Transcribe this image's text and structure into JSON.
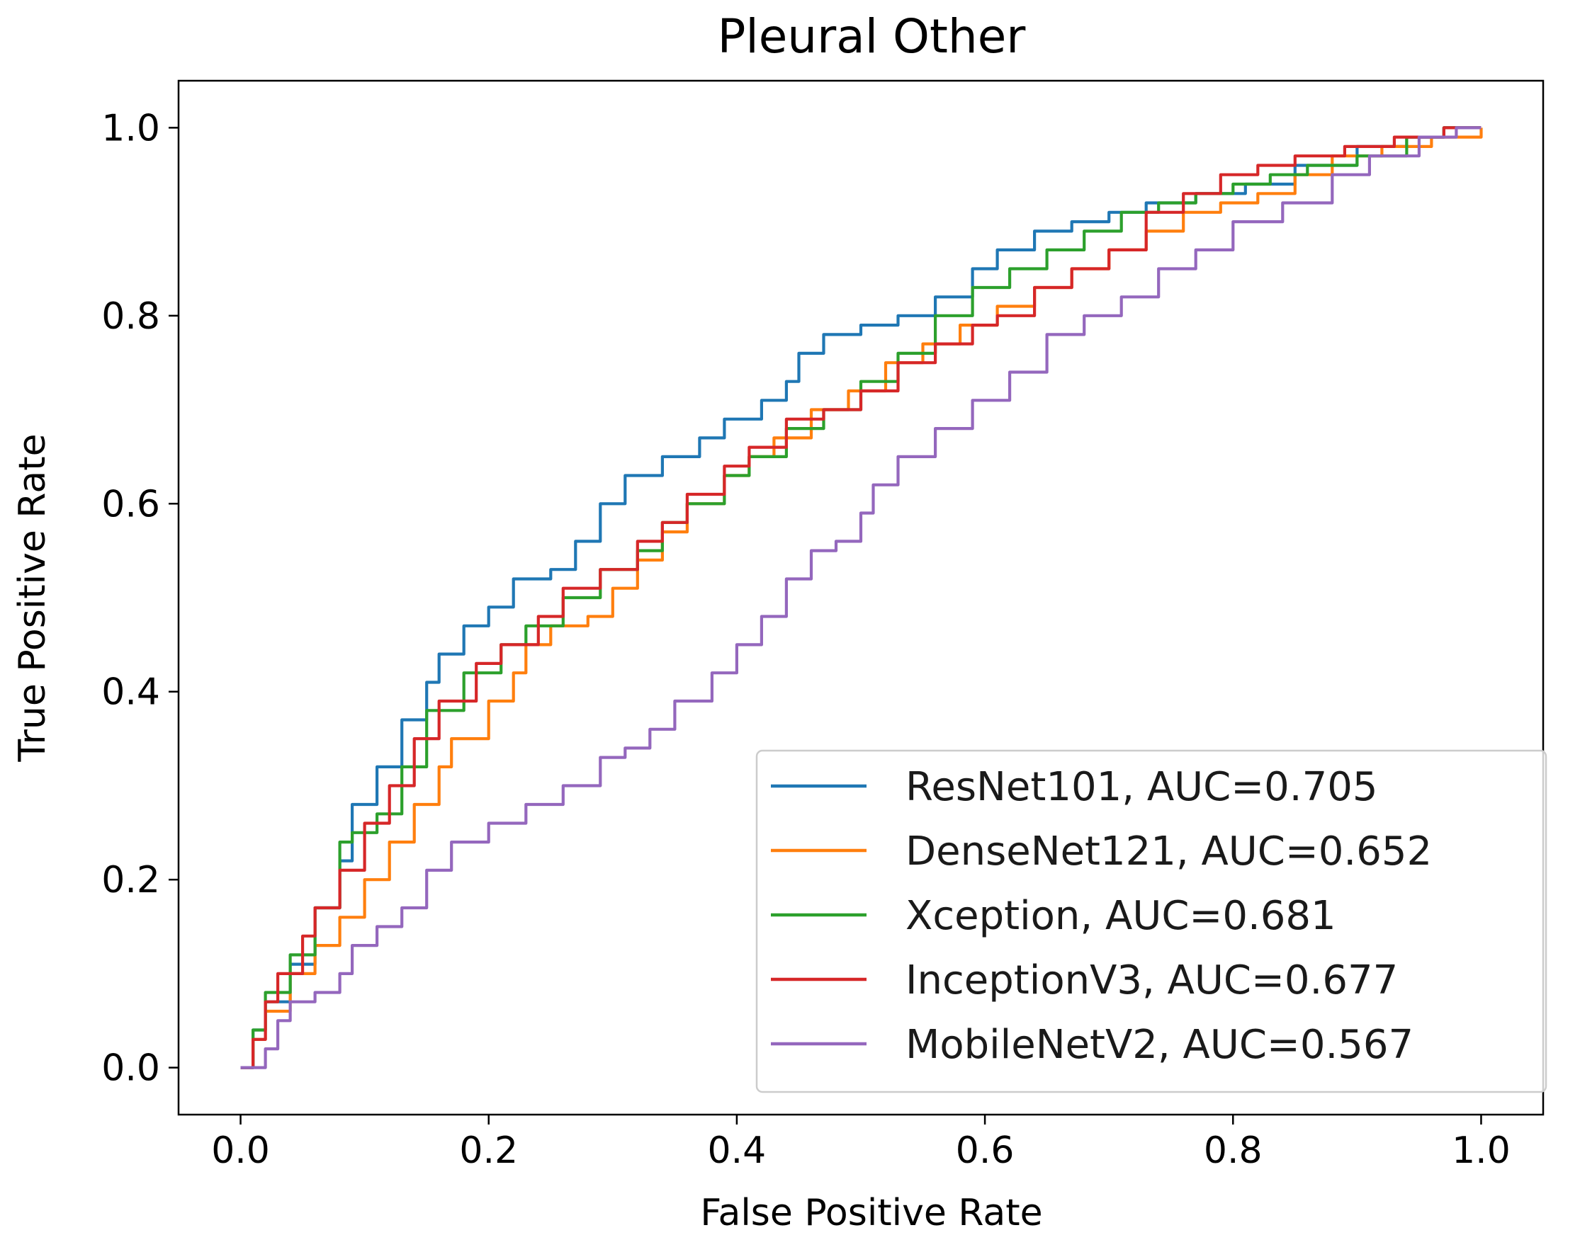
{
  "chart_data": {
    "type": "line",
    "title": "Pleural Other",
    "xlabel": "False Positive Rate",
    "ylabel": "True Positive Rate",
    "xlim": [
      -0.05,
      1.05
    ],
    "ylim": [
      -0.05,
      1.05
    ],
    "xticks": [
      0.0,
      0.2,
      0.4,
      0.6,
      0.8,
      1.0
    ],
    "xtick_labels": [
      "0.0",
      "0.2",
      "0.4",
      "0.6",
      "0.8",
      "1.0"
    ],
    "yticks": [
      0.0,
      0.2,
      0.4,
      0.6,
      0.8,
      1.0
    ],
    "ytick_labels": [
      "0.0",
      "0.2",
      "0.4",
      "0.6",
      "0.8",
      "1.0"
    ],
    "grid": false,
    "legend_position": "lower-right",
    "series": [
      {
        "name": "ResNet101, AUC=0.705",
        "color": "#1f77b4",
        "points": [
          [
            0,
            0
          ],
          [
            0.01,
            0.04
          ],
          [
            0.02,
            0.07
          ],
          [
            0.04,
            0.11
          ],
          [
            0.06,
            0.17
          ],
          [
            0.08,
            0.22
          ],
          [
            0.09,
            0.28
          ],
          [
            0.11,
            0.32
          ],
          [
            0.13,
            0.37
          ],
          [
            0.15,
            0.41
          ],
          [
            0.16,
            0.44
          ],
          [
            0.18,
            0.47
          ],
          [
            0.2,
            0.49
          ],
          [
            0.22,
            0.52
          ],
          [
            0.25,
            0.53
          ],
          [
            0.27,
            0.56
          ],
          [
            0.29,
            0.6
          ],
          [
            0.31,
            0.63
          ],
          [
            0.34,
            0.65
          ],
          [
            0.37,
            0.67
          ],
          [
            0.39,
            0.69
          ],
          [
            0.42,
            0.71
          ],
          [
            0.44,
            0.73
          ],
          [
            0.45,
            0.76
          ],
          [
            0.47,
            0.78
          ],
          [
            0.5,
            0.79
          ],
          [
            0.53,
            0.8
          ],
          [
            0.56,
            0.82
          ],
          [
            0.59,
            0.85
          ],
          [
            0.61,
            0.87
          ],
          [
            0.64,
            0.89
          ],
          [
            0.67,
            0.9
          ],
          [
            0.7,
            0.91
          ],
          [
            0.73,
            0.92
          ],
          [
            0.77,
            0.93
          ],
          [
            0.81,
            0.94
          ],
          [
            0.85,
            0.96
          ],
          [
            0.9,
            0.98
          ],
          [
            0.94,
            0.99
          ],
          [
            0.97,
            1.0
          ],
          [
            1.0,
            1.0
          ]
        ]
      },
      {
        "name": "DenseNet121, AUC=0.652",
        "color": "#ff7f0e",
        "points": [
          [
            0,
            0
          ],
          [
            0.01,
            0.03
          ],
          [
            0.02,
            0.06
          ],
          [
            0.04,
            0.1
          ],
          [
            0.06,
            0.13
          ],
          [
            0.08,
            0.16
          ],
          [
            0.1,
            0.2
          ],
          [
            0.12,
            0.24
          ],
          [
            0.14,
            0.28
          ],
          [
            0.16,
            0.32
          ],
          [
            0.17,
            0.35
          ],
          [
            0.2,
            0.39
          ],
          [
            0.22,
            0.42
          ],
          [
            0.23,
            0.45
          ],
          [
            0.25,
            0.47
          ],
          [
            0.28,
            0.48
          ],
          [
            0.3,
            0.51
          ],
          [
            0.32,
            0.54
          ],
          [
            0.34,
            0.57
          ],
          [
            0.36,
            0.6
          ],
          [
            0.39,
            0.63
          ],
          [
            0.41,
            0.65
          ],
          [
            0.43,
            0.67
          ],
          [
            0.46,
            0.7
          ],
          [
            0.49,
            0.72
          ],
          [
            0.52,
            0.75
          ],
          [
            0.55,
            0.77
          ],
          [
            0.58,
            0.79
          ],
          [
            0.61,
            0.81
          ],
          [
            0.64,
            0.83
          ],
          [
            0.67,
            0.85
          ],
          [
            0.7,
            0.87
          ],
          [
            0.73,
            0.89
          ],
          [
            0.76,
            0.91
          ],
          [
            0.79,
            0.92
          ],
          [
            0.82,
            0.93
          ],
          [
            0.85,
            0.95
          ],
          [
            0.88,
            0.97
          ],
          [
            0.92,
            0.98
          ],
          [
            0.96,
            0.99
          ],
          [
            1.0,
            1.0
          ]
        ]
      },
      {
        "name": "Xception, AUC=0.681",
        "color": "#2ca02c",
        "points": [
          [
            0,
            0
          ],
          [
            0.01,
            0.04
          ],
          [
            0.02,
            0.08
          ],
          [
            0.04,
            0.12
          ],
          [
            0.06,
            0.17
          ],
          [
            0.08,
            0.24
          ],
          [
            0.09,
            0.25
          ],
          [
            0.11,
            0.27
          ],
          [
            0.13,
            0.32
          ],
          [
            0.15,
            0.38
          ],
          [
            0.18,
            0.42
          ],
          [
            0.21,
            0.45
          ],
          [
            0.23,
            0.47
          ],
          [
            0.26,
            0.5
          ],
          [
            0.29,
            0.53
          ],
          [
            0.32,
            0.55
          ],
          [
            0.34,
            0.58
          ],
          [
            0.36,
            0.6
          ],
          [
            0.39,
            0.63
          ],
          [
            0.41,
            0.65
          ],
          [
            0.44,
            0.68
          ],
          [
            0.47,
            0.7
          ],
          [
            0.5,
            0.73
          ],
          [
            0.53,
            0.76
          ],
          [
            0.56,
            0.8
          ],
          [
            0.59,
            0.83
          ],
          [
            0.62,
            0.85
          ],
          [
            0.65,
            0.87
          ],
          [
            0.68,
            0.89
          ],
          [
            0.71,
            0.91
          ],
          [
            0.74,
            0.92
          ],
          [
            0.77,
            0.93
          ],
          [
            0.8,
            0.94
          ],
          [
            0.83,
            0.95
          ],
          [
            0.86,
            0.96
          ],
          [
            0.9,
            0.97
          ],
          [
            0.94,
            0.99
          ],
          [
            0.97,
            1.0
          ],
          [
            1.0,
            1.0
          ]
        ]
      },
      {
        "name": "InceptionV3, AUC=0.677",
        "color": "#d62728",
        "points": [
          [
            0,
            0
          ],
          [
            0.01,
            0.03
          ],
          [
            0.02,
            0.07
          ],
          [
            0.03,
            0.1
          ],
          [
            0.05,
            0.14
          ],
          [
            0.06,
            0.17
          ],
          [
            0.08,
            0.21
          ],
          [
            0.1,
            0.26
          ],
          [
            0.12,
            0.3
          ],
          [
            0.14,
            0.35
          ],
          [
            0.16,
            0.39
          ],
          [
            0.19,
            0.43
          ],
          [
            0.21,
            0.45
          ],
          [
            0.24,
            0.48
          ],
          [
            0.26,
            0.51
          ],
          [
            0.29,
            0.53
          ],
          [
            0.32,
            0.56
          ],
          [
            0.34,
            0.58
          ],
          [
            0.36,
            0.61
          ],
          [
            0.39,
            0.64
          ],
          [
            0.41,
            0.66
          ],
          [
            0.44,
            0.69
          ],
          [
            0.47,
            0.7
          ],
          [
            0.5,
            0.72
          ],
          [
            0.53,
            0.75
          ],
          [
            0.56,
            0.77
          ],
          [
            0.59,
            0.79
          ],
          [
            0.61,
            0.8
          ],
          [
            0.64,
            0.83
          ],
          [
            0.67,
            0.85
          ],
          [
            0.7,
            0.87
          ],
          [
            0.73,
            0.91
          ],
          [
            0.76,
            0.93
          ],
          [
            0.79,
            0.95
          ],
          [
            0.82,
            0.96
          ],
          [
            0.85,
            0.97
          ],
          [
            0.89,
            0.98
          ],
          [
            0.93,
            0.99
          ],
          [
            0.97,
            1.0
          ],
          [
            1.0,
            1.0
          ]
        ]
      },
      {
        "name": "MobileNetV2, AUC=0.567",
        "color": "#9467bd",
        "points": [
          [
            0,
            0
          ],
          [
            0.02,
            0.02
          ],
          [
            0.03,
            0.05
          ],
          [
            0.04,
            0.07
          ],
          [
            0.06,
            0.08
          ],
          [
            0.08,
            0.1
          ],
          [
            0.09,
            0.13
          ],
          [
            0.11,
            0.15
          ],
          [
            0.13,
            0.17
          ],
          [
            0.15,
            0.21
          ],
          [
            0.17,
            0.24
          ],
          [
            0.2,
            0.26
          ],
          [
            0.23,
            0.28
          ],
          [
            0.26,
            0.3
          ],
          [
            0.29,
            0.33
          ],
          [
            0.31,
            0.34
          ],
          [
            0.33,
            0.36
          ],
          [
            0.35,
            0.39
          ],
          [
            0.38,
            0.42
          ],
          [
            0.4,
            0.45
          ],
          [
            0.42,
            0.48
          ],
          [
            0.44,
            0.52
          ],
          [
            0.46,
            0.55
          ],
          [
            0.48,
            0.56
          ],
          [
            0.5,
            0.59
          ],
          [
            0.51,
            0.62
          ],
          [
            0.53,
            0.65
          ],
          [
            0.56,
            0.68
          ],
          [
            0.59,
            0.71
          ],
          [
            0.62,
            0.74
          ],
          [
            0.65,
            0.78
          ],
          [
            0.68,
            0.8
          ],
          [
            0.71,
            0.82
          ],
          [
            0.74,
            0.85
          ],
          [
            0.77,
            0.87
          ],
          [
            0.8,
            0.9
          ],
          [
            0.84,
            0.92
          ],
          [
            0.88,
            0.95
          ],
          [
            0.91,
            0.97
          ],
          [
            0.95,
            0.99
          ],
          [
            0.98,
            1.0
          ],
          [
            1.0,
            1.0
          ]
        ]
      }
    ]
  }
}
